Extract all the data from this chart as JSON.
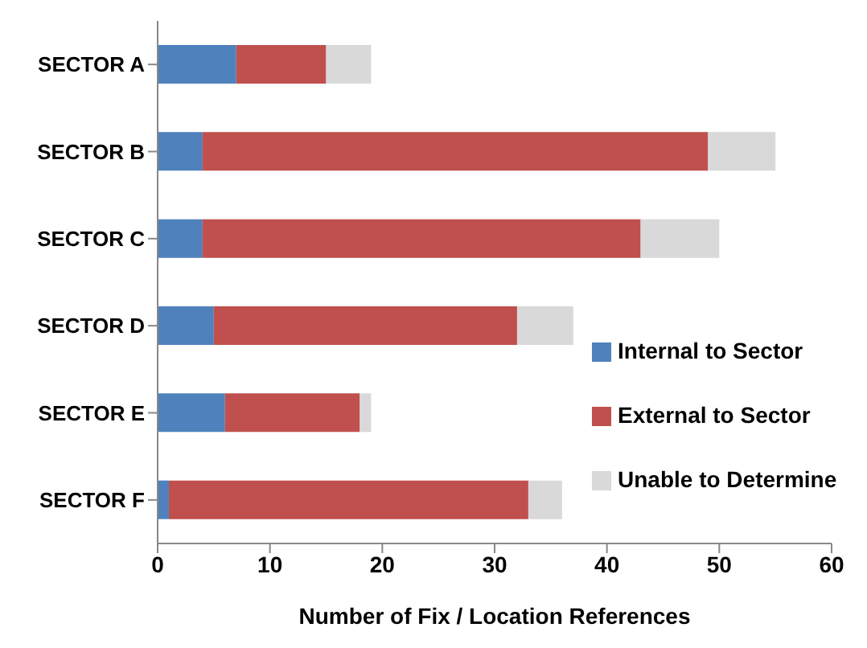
{
  "chart_data": {
    "type": "bar",
    "orientation": "horizontal",
    "stacked": true,
    "xlabel": "Number of Fix / Location References",
    "categories": [
      "SECTOR A",
      "SECTOR B",
      "SECTOR C",
      "SECTOR D",
      "SECTOR E",
      "SECTOR F"
    ],
    "series": [
      {
        "name": "Internal to Sector",
        "color": "#4f81bd",
        "values": [
          7,
          4,
          4,
          5,
          6,
          1
        ]
      },
      {
        "name": "External to Sector",
        "color": "#c0504d",
        "values": [
          8,
          45,
          39,
          27,
          12,
          32
        ]
      },
      {
        "name": "Unable to Determine",
        "color": "#d9d9d9",
        "values": [
          4,
          6,
          7,
          5,
          1,
          3
        ]
      }
    ],
    "xlim": [
      0,
      60
    ],
    "xticks": [
      0,
      10,
      20,
      30,
      40,
      50,
      60
    ],
    "grid": false,
    "legend": "right"
  }
}
